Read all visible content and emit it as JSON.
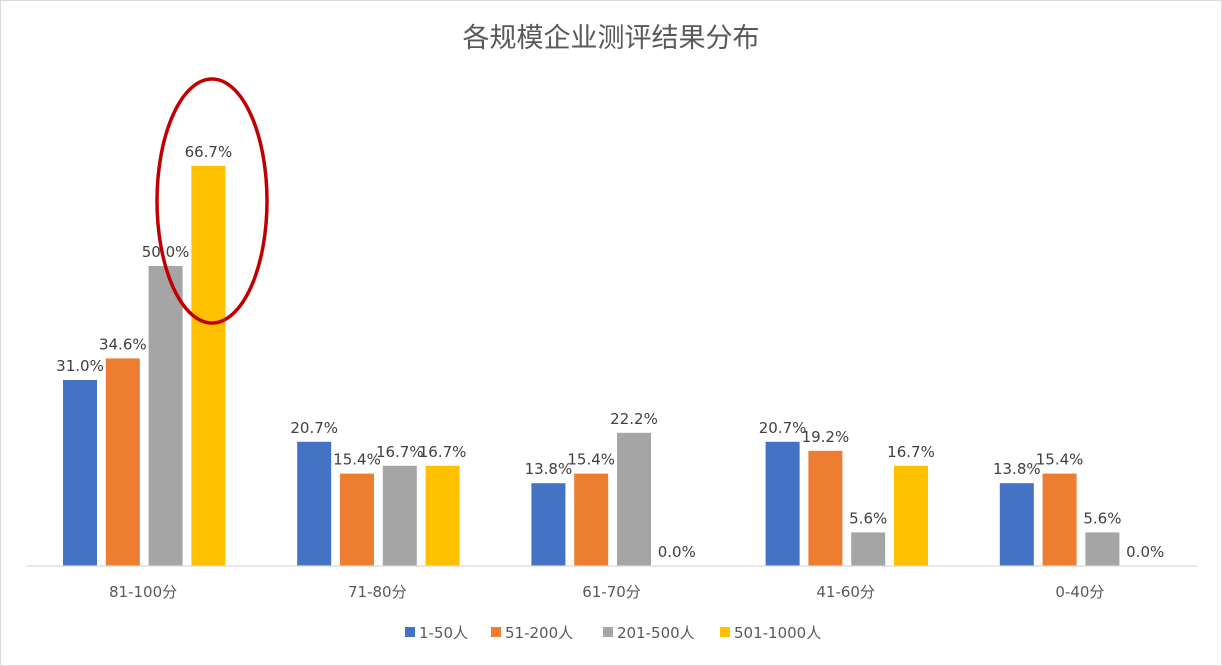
{
  "chart_data": {
    "type": "bar",
    "title": "各规模企业测评结果分布",
    "categories": [
      "81-100分",
      "71-80分",
      "61-70分",
      "41-60分",
      "0-40分"
    ],
    "series": [
      {
        "name": "1-50人",
        "color": "#4472C4",
        "values": [
          31.0,
          20.7,
          13.8,
          20.7,
          13.8
        ],
        "labels": [
          "31.0%",
          "20.7%",
          "13.8%",
          "20.7%",
          "13.8%"
        ]
      },
      {
        "name": "51-200人",
        "color": "#ED7D31",
        "values": [
          34.6,
          15.4,
          15.4,
          19.2,
          15.4
        ],
        "labels": [
          "34.6%",
          "15.4%",
          "15.4%",
          "19.2%",
          "15.4%"
        ]
      },
      {
        "name": "201-500人",
        "color": "#A5A5A5",
        "values": [
          50.0,
          16.7,
          22.2,
          5.6,
          5.6
        ],
        "labels": [
          "50.0%",
          "16.7%",
          "22.2%",
          "5.6%",
          "5.6%"
        ]
      },
      {
        "name": "501-1000人",
        "color": "#FFC000",
        "values": [
          66.7,
          16.7,
          0.0,
          16.7,
          0.0
        ],
        "labels": [
          "66.7%",
          "16.7%",
          "0.0%",
          "16.7%",
          "0.0%"
        ]
      }
    ],
    "ylim": [
      0,
      80
    ],
    "grid": false,
    "legend_position": "bottom",
    "annotation": {
      "shape": "ellipse",
      "color": "#C00000",
      "highlights": "81-100分 / 201-500人, 501-1000人"
    }
  }
}
